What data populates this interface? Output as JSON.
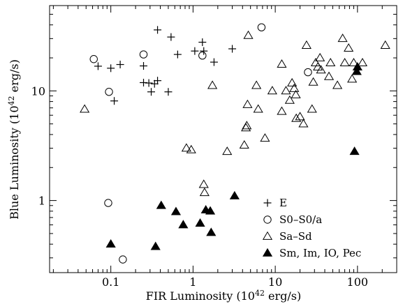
{
  "chart_data": {
    "type": "scatter",
    "title": "",
    "xlabel": "FIR Luminosity",
    "xlabel_unit": "(10",
    "xlabel_exp": "42",
    "xlabel_tail": " erg/s)",
    "ylabel": "Blue Luminosity",
    "ylabel_unit": "(10",
    "ylabel_exp": "42",
    "ylabel_tail": " erg/s)",
    "x_scale": "log",
    "y_scale": "log",
    "xlim": [
      0.018,
      300
    ],
    "ylim": [
      0.22,
      60
    ],
    "x_tick_labels": [
      {
        "value": 0.1,
        "label": "0.1"
      },
      {
        "value": 1,
        "label": "1"
      },
      {
        "value": 10,
        "label": "10"
      },
      {
        "value": 100,
        "label": "100"
      }
    ],
    "y_tick_labels": [
      {
        "value": 1,
        "label": "1"
      },
      {
        "value": 10,
        "label": "10"
      }
    ],
    "grid": false,
    "legend_position": "lower-right",
    "series": [
      {
        "name": "E",
        "marker": "plus",
        "points": [
          [
            0.07,
            16.8
          ],
          [
            0.1,
            16.1
          ],
          [
            0.13,
            17.4
          ],
          [
            0.11,
            8.1
          ],
          [
            0.25,
            16.9
          ],
          [
            0.25,
            11.9
          ],
          [
            0.29,
            11.8
          ],
          [
            0.31,
            9.8
          ],
          [
            0.34,
            11.6
          ],
          [
            0.37,
            12.4
          ],
          [
            0.37,
            36.0
          ],
          [
            0.5,
            9.8
          ],
          [
            0.54,
            31.0
          ],
          [
            0.65,
            21.5
          ],
          [
            1.05,
            23.1
          ],
          [
            1.3,
            27.8
          ],
          [
            1.35,
            23.1
          ],
          [
            1.8,
            18.3
          ],
          [
            3.0,
            24.2
          ]
        ]
      },
      {
        "name": "S0–S0/a",
        "marker": "circle",
        "points": [
          [
            0.062,
            19.5
          ],
          [
            0.095,
            9.8
          ],
          [
            0.25,
            21.5
          ],
          [
            1.3,
            21.0
          ],
          [
            6.8,
            38.0
          ],
          [
            25,
            14.8
          ],
          [
            0.093,
            0.95
          ],
          [
            0.14,
            0.29
          ]
        ]
      },
      {
        "name": "Sa–Sd",
        "marker": "triangle-open",
        "points": [
          [
            0.048,
            6.8
          ],
          [
            0.83,
            3.0
          ],
          [
            0.95,
            2.9
          ],
          [
            1.35,
            1.4
          ],
          [
            1.38,
            1.18
          ],
          [
            1.72,
            11.2
          ],
          [
            2.6,
            2.8
          ],
          [
            4.2,
            3.2
          ],
          [
            4.4,
            4.6
          ],
          [
            4.5,
            4.8
          ],
          [
            4.6,
            7.5
          ],
          [
            4.7,
            32.0
          ],
          [
            5.9,
            11.2
          ],
          [
            6.2,
            6.8
          ],
          [
            7.5,
            3.7
          ],
          [
            9.2,
            10.0
          ],
          [
            12,
            17.5
          ],
          [
            12,
            6.5
          ],
          [
            13.5,
            10.0
          ],
          [
            15,
            8.2
          ],
          [
            16,
            11.8
          ],
          [
            17,
            10.5
          ],
          [
            17.8,
            9.2
          ],
          [
            18,
            5.6
          ],
          [
            20,
            5.8
          ],
          [
            22,
            5.0
          ],
          [
            24,
            26.0
          ],
          [
            28,
            6.8
          ],
          [
            29,
            12.0
          ],
          [
            31,
            18.0
          ],
          [
            33,
            16.5
          ],
          [
            35,
            20.0
          ],
          [
            36,
            15.5
          ],
          [
            45,
            13.5
          ],
          [
            47,
            18.0
          ],
          [
            57,
            11.2
          ],
          [
            66,
            30.0
          ],
          [
            70,
            18.0
          ],
          [
            78,
            24.5
          ],
          [
            86,
            12.8
          ],
          [
            90,
            18.0
          ],
          [
            115,
            18.0
          ],
          [
            218,
            26.0
          ]
        ]
      },
      {
        "name": "Sm, Im, IO, Pec",
        "marker": "triangle-filled",
        "points": [
          [
            0.1,
            0.4
          ],
          [
            0.35,
            0.38
          ],
          [
            0.41,
            0.9
          ],
          [
            0.62,
            0.79
          ],
          [
            0.76,
            0.6
          ],
          [
            1.22,
            0.62
          ],
          [
            1.43,
            0.82
          ],
          [
            1.62,
            0.8
          ],
          [
            1.66,
            0.51
          ],
          [
            3.2,
            1.1
          ],
          [
            92,
            2.8
          ],
          [
            98,
            15.0
          ],
          [
            100,
            16.5
          ]
        ]
      }
    ]
  }
}
